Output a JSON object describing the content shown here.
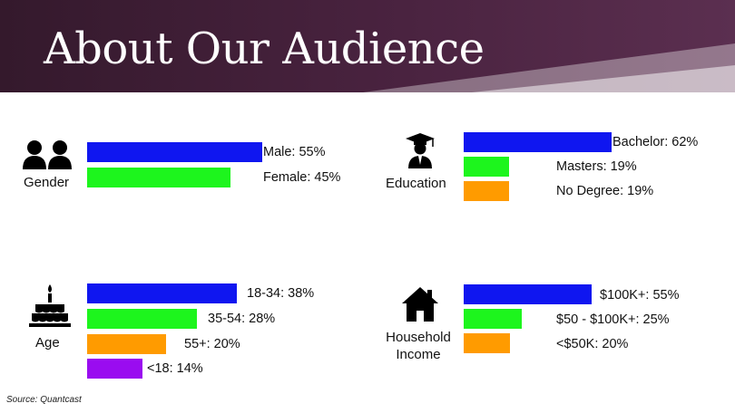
{
  "header": {
    "title": "About Our Audience"
  },
  "colors": {
    "blue": "#0f16f0",
    "green": "#1df51d",
    "orange": "#ff9b00",
    "purple": "#9a0cf0",
    "banner": "#3d1d35"
  },
  "chart_data": [
    {
      "type": "bar",
      "title": "Gender",
      "icon": "people-icon",
      "categories": [
        "Male",
        "Female"
      ],
      "values": [
        55,
        45
      ],
      "labels": [
        "Male: 55%",
        "Female: 45%"
      ],
      "colors": [
        "#0f16f0",
        "#1df51d"
      ]
    },
    {
      "type": "bar",
      "title": "Education",
      "icon": "graduate-icon",
      "categories": [
        "Bachelor",
        "Masters",
        "No Degree"
      ],
      "values": [
        62,
        19,
        19
      ],
      "labels": [
        "Bachelor: 62%",
        "Masters: 19%",
        "No Degree: 19%"
      ],
      "colors": [
        "#0f16f0",
        "#1df51d",
        "#ff9b00"
      ]
    },
    {
      "type": "bar",
      "title": "Age",
      "icon": "birthday-cake-icon",
      "categories": [
        "18-34",
        "35-54",
        "55+",
        "<18"
      ],
      "values": [
        38,
        28,
        20,
        14
      ],
      "labels": [
        "18-34: 38%",
        "35-54: 28%",
        "55+: 20%",
        "<18: 14%"
      ],
      "colors": [
        "#0f16f0",
        "#1df51d",
        "#ff9b00",
        "#9a0cf0"
      ]
    },
    {
      "type": "bar",
      "title": "Household Income",
      "icon": "house-icon",
      "categories": [
        "$100K+",
        "$50 - $100K+",
        "<$50K"
      ],
      "values": [
        55,
        25,
        20
      ],
      "labels": [
        "$100K+: 55%",
        "$50 - $100K+: 25%",
        "<$50K: 20%"
      ],
      "colors": [
        "#0f16f0",
        "#1df51d",
        "#ff9b00"
      ]
    }
  ],
  "footer": {
    "source": "Source: Quantcast"
  }
}
